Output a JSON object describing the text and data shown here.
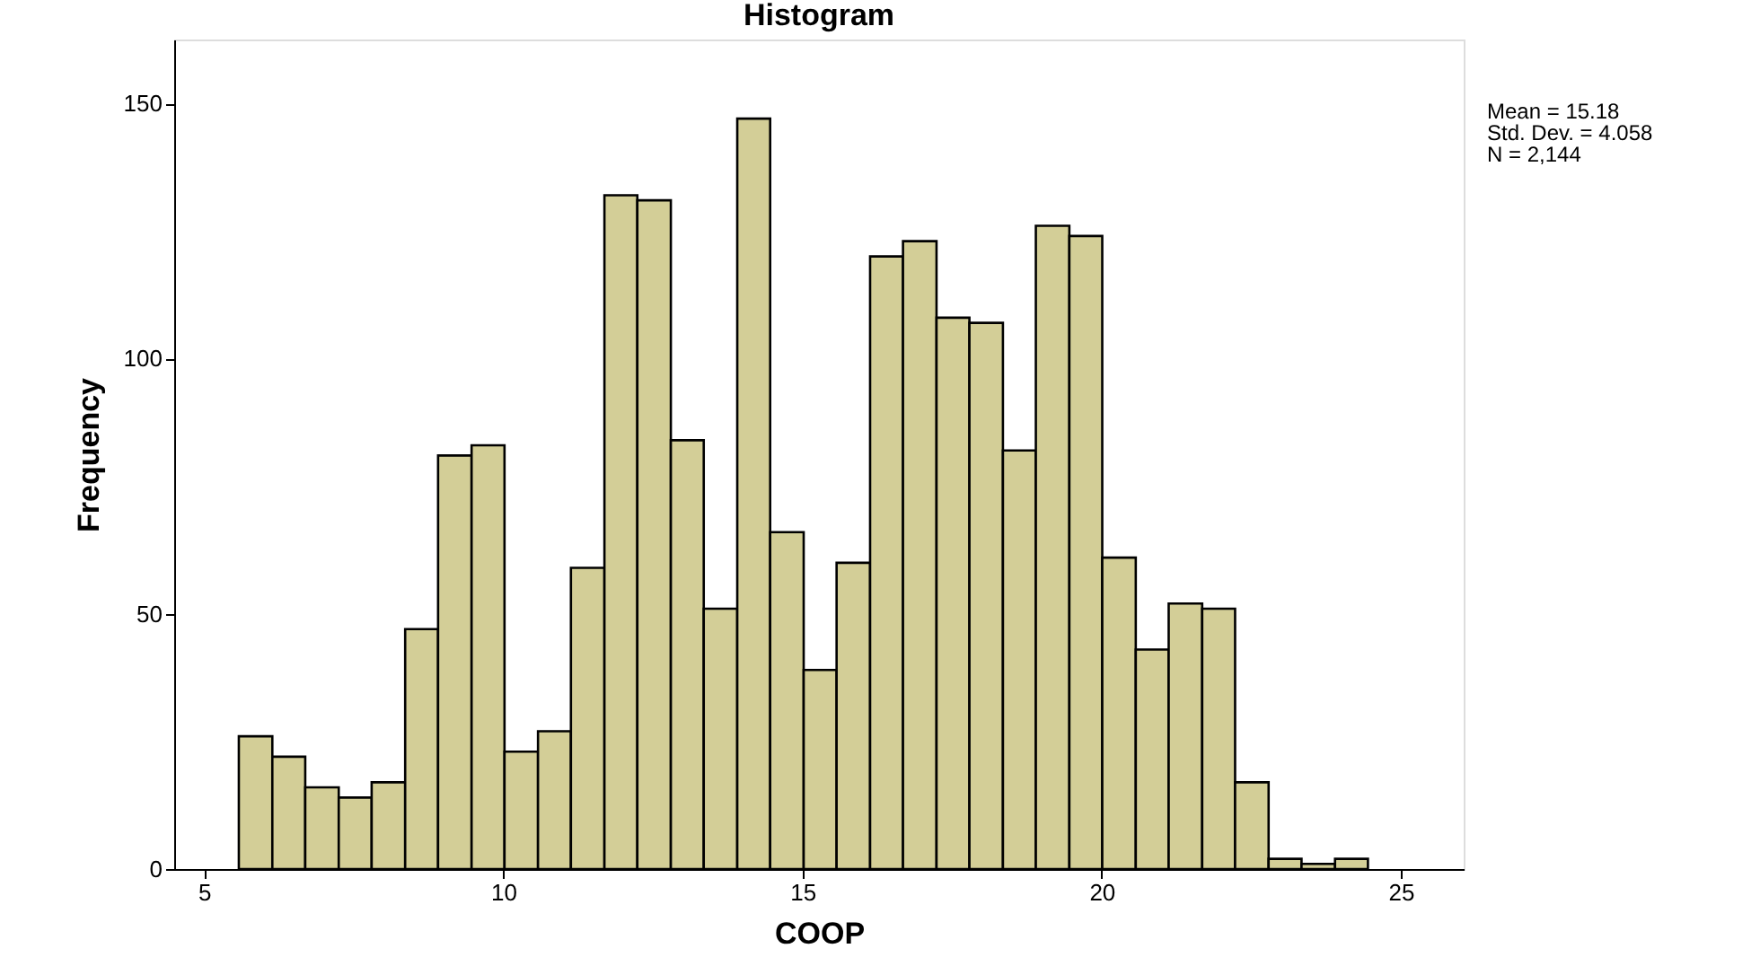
{
  "chart_data": {
    "type": "histogram",
    "title": "Histogram",
    "xlabel": "COOP",
    "ylabel": "Frequency",
    "bins": [
      5.58,
      6.14,
      6.69,
      7.25,
      7.8,
      8.36,
      8.91,
      9.47,
      10.02,
      10.58,
      11.13,
      11.69,
      12.24,
      12.8,
      13.35,
      13.91,
      14.46,
      15.02,
      15.57,
      16.13,
      16.68,
      17.24,
      17.79,
      18.35,
      18.9,
      19.46,
      20.01,
      20.57,
      21.12,
      21.68,
      22.23,
      22.79,
      23.34,
      23.9,
      24.45
    ],
    "values": [
      26,
      22,
      16,
      14,
      17,
      47,
      81,
      83,
      23,
      27,
      59,
      132,
      131,
      84,
      51,
      147,
      66,
      39,
      60,
      120,
      123,
      108,
      107,
      82,
      126,
      124,
      61,
      43,
      52,
      51,
      17,
      2,
      1,
      2
    ],
    "color": "#d3ce97",
    "xlim": [
      4.5,
      26.05
    ],
    "xticks": [
      5,
      10,
      15,
      20,
      25
    ],
    "ylim": [
      0,
      162.5
    ],
    "yticks": [
      0,
      50,
      100,
      150
    ],
    "grid": false,
    "annotations": [
      "Mean = 15.18",
      "Std. Dev. = 4.058",
      "N = 2,144"
    ]
  }
}
